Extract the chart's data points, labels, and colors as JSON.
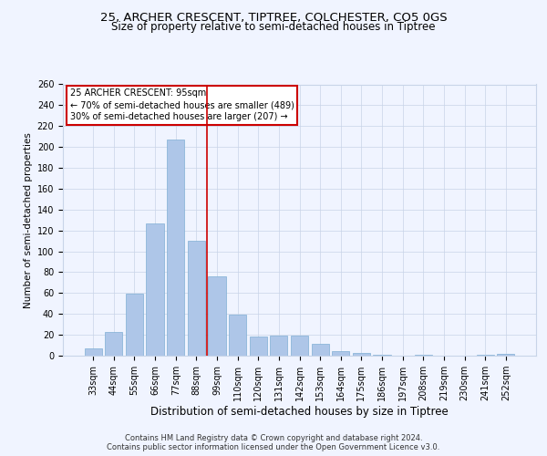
{
  "title1": "25, ARCHER CRESCENT, TIPTREE, COLCHESTER, CO5 0GS",
  "title2": "Size of property relative to semi-detached houses in Tiptree",
  "xlabel": "Distribution of semi-detached houses by size in Tiptree",
  "ylabel": "Number of semi-detached properties",
  "categories": [
    "33sqm",
    "44sqm",
    "55sqm",
    "66sqm",
    "77sqm",
    "88sqm",
    "99sqm",
    "110sqm",
    "120sqm",
    "131sqm",
    "142sqm",
    "153sqm",
    "164sqm",
    "175sqm",
    "186sqm",
    "197sqm",
    "208sqm",
    "219sqm",
    "230sqm",
    "241sqm",
    "252sqm"
  ],
  "values": [
    7,
    23,
    59,
    127,
    207,
    110,
    76,
    39,
    18,
    19,
    19,
    11,
    4,
    3,
    1,
    0,
    1,
    0,
    0,
    1,
    2
  ],
  "bar_color": "#aec6e8",
  "bar_edge_color": "#7fafd4",
  "vline_color": "#cc0000",
  "annotation_title": "25 ARCHER CRESCENT: 95sqm",
  "annotation_line1": "← 70% of semi-detached houses are smaller (489)",
  "annotation_line2": "30% of semi-detached houses are larger (207) →",
  "annotation_box_facecolor": "#ffffff",
  "annotation_box_edgecolor": "#cc0000",
  "footer1": "Contains HM Land Registry data © Crown copyright and database right 2024.",
  "footer2": "Contains public sector information licensed under the Open Government Licence v3.0.",
  "background_color": "#f0f4ff",
  "grid_color": "#c8d4e8",
  "ylim": [
    0,
    260
  ],
  "yticks": [
    0,
    20,
    40,
    60,
    80,
    100,
    120,
    140,
    160,
    180,
    200,
    220,
    240,
    260
  ],
  "title1_fontsize": 9.5,
  "title2_fontsize": 8.5,
  "ylabel_fontsize": 7.5,
  "xlabel_fontsize": 8.5,
  "tick_fontsize": 7,
  "footer_fontsize": 6,
  "ann_fontsize": 7
}
